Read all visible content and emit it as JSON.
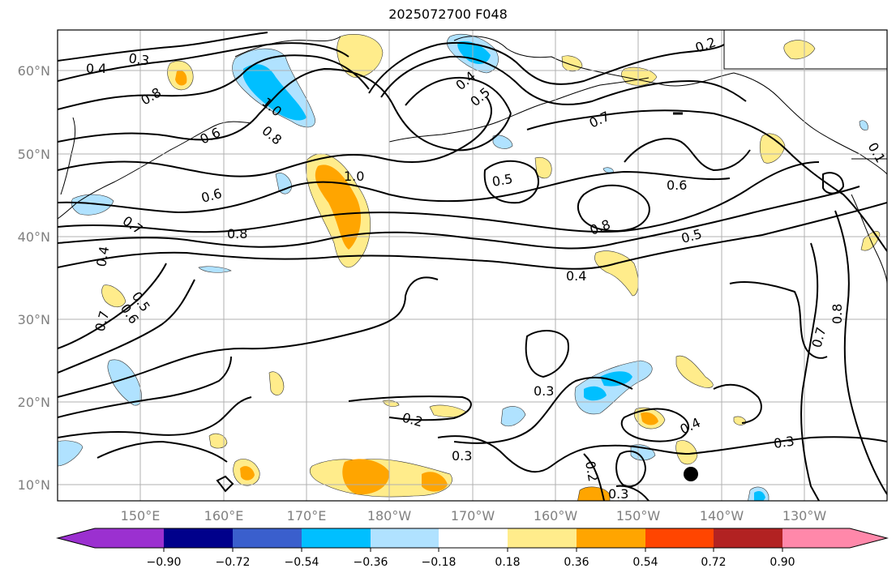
{
  "title": "2025072700 F048",
  "map": {
    "lon_ticks": [
      "150°E",
      "160°E",
      "170°E",
      "180°W",
      "170°W",
      "160°W",
      "150°W",
      "140°W",
      "130°W"
    ],
    "lat_ticks": [
      "60°N",
      "50°N",
      "40°N",
      "30°N",
      "20°N",
      "10°N"
    ],
    "lon_range": [
      140,
      240
    ],
    "lat_range": [
      8,
      65
    ],
    "grid": true,
    "contour_labels": [
      "0.3",
      "0.4",
      "0.8",
      "0.6",
      "0.7",
      "1.0",
      "0.8",
      "0.6",
      "0.8",
      "0.7",
      "0.4",
      "0.5",
      "0.6",
      "1.0",
      "0.5",
      "0.4",
      "0.2",
      "0.5",
      "0.7",
      "0.6",
      "0.8",
      "0.5",
      "0.4",
      "0.3",
      "0.2",
      "0.3",
      "0.4",
      "0.3",
      "0.3",
      "0.2",
      "0.8",
      "0.7",
      "0.1"
    ],
    "marker": "storm-position-dot"
  },
  "colorbar": {
    "ticks": [
      "−0.90",
      "−0.72",
      "−0.54",
      "−0.36",
      "−0.18",
      "0.18",
      "0.36",
      "0.54",
      "0.72",
      "0.90"
    ],
    "colors": [
      "#9b30d0",
      "#00008b",
      "#3a5fcd",
      "#00bfff",
      "#b0e2ff",
      "#ffffff",
      "#ffec8b",
      "#ffa500",
      "#ff4500",
      "#b22222",
      "#ff88aa"
    ]
  }
}
